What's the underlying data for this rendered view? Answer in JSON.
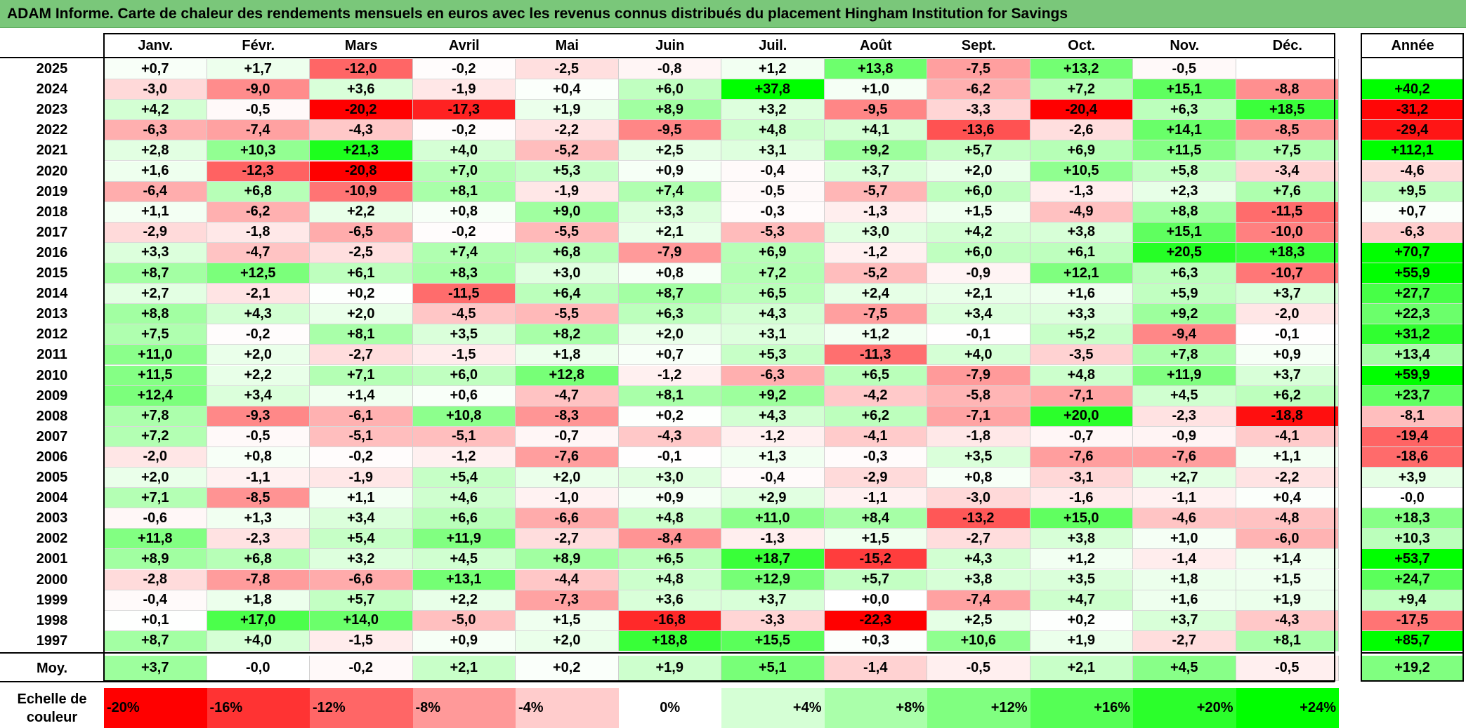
{
  "title": "ADAM Informe. Carte de chaleur des rendements mensuels en euros avec les revenus connus distribués du placement Hingham Institution for Savings",
  "chart_data": {
    "type": "heatmap",
    "title": "ADAM Informe. Carte de chaleur des rendements mensuels en euros avec les revenus connus distribués du placement Hingham Institution for Savings",
    "months": [
      "Janv.",
      "Févr.",
      "Mars",
      "Avril",
      "Mai",
      "Juin",
      "Juil.",
      "Août",
      "Sept.",
      "Oct.",
      "Nov.",
      "Déc."
    ],
    "annual_header": "Année",
    "rows": [
      {
        "year": "2025",
        "values": [
          "+0,7",
          "+1,7",
          "-12,0",
          "-0,2",
          "-2,5",
          "-0,8",
          "+1,2",
          "+13,8",
          "-7,5",
          "+13,2",
          "-0,5",
          ""
        ],
        "annual": ""
      },
      {
        "year": "2024",
        "values": [
          "-3,0",
          "-9,0",
          "+3,6",
          "-1,9",
          "+0,4",
          "+6,0",
          "+37,8",
          "+1,0",
          "-6,2",
          "+7,2",
          "+15,1",
          "-8,8"
        ],
        "annual": "+40,2"
      },
      {
        "year": "2023",
        "values": [
          "+4,2",
          "-0,5",
          "-20,2",
          "-17,3",
          "+1,9",
          "+8,9",
          "+3,2",
          "-9,5",
          "-3,3",
          "-20,4",
          "+6,3",
          "+18,5"
        ],
        "annual": "-31,2"
      },
      {
        "year": "2022",
        "values": [
          "-6,3",
          "-7,4",
          "-4,3",
          "-0,2",
          "-2,2",
          "-9,5",
          "+4,8",
          "+4,1",
          "-13,6",
          "-2,6",
          "+14,1",
          "-8,5"
        ],
        "annual": "-29,4"
      },
      {
        "year": "2021",
        "values": [
          "+2,8",
          "+10,3",
          "+21,3",
          "+4,0",
          "-5,2",
          "+2,5",
          "+3,1",
          "+9,2",
          "+5,7",
          "+6,9",
          "+11,5",
          "+7,5"
        ],
        "annual": "+112,1"
      },
      {
        "year": "2020",
        "values": [
          "+1,6",
          "-12,3",
          "-20,8",
          "+7,0",
          "+5,3",
          "+0,9",
          "-0,4",
          "+3,7",
          "+2,0",
          "+10,5",
          "+5,8",
          "-3,4"
        ],
        "annual": "-4,6"
      },
      {
        "year": "2019",
        "values": [
          "-6,4",
          "+6,8",
          "-10,9",
          "+8,1",
          "-1,9",
          "+7,4",
          "-0,5",
          "-5,7",
          "+6,0",
          "-1,3",
          "+2,3",
          "+7,6"
        ],
        "annual": "+9,5"
      },
      {
        "year": "2018",
        "values": [
          "+1,1",
          "-6,2",
          "+2,2",
          "+0,8",
          "+9,0",
          "+3,3",
          "-0,3",
          "-1,3",
          "+1,5",
          "-4,9",
          "+8,8",
          "-11,5"
        ],
        "annual": "+0,7"
      },
      {
        "year": "2017",
        "values": [
          "-2,9",
          "-1,8",
          "-6,5",
          "-0,2",
          "-5,5",
          "+2,1",
          "-5,3",
          "+3,0",
          "+4,2",
          "+3,8",
          "+15,1",
          "-10,0"
        ],
        "annual": "-6,3"
      },
      {
        "year": "2016",
        "values": [
          "+3,3",
          "-4,7",
          "-2,5",
          "+7,4",
          "+6,8",
          "-7,9",
          "+6,9",
          "-1,2",
          "+6,0",
          "+6,1",
          "+20,5",
          "+18,3"
        ],
        "annual": "+70,7"
      },
      {
        "year": "2015",
        "values": [
          "+8,7",
          "+12,5",
          "+6,1",
          "+8,3",
          "+3,0",
          "+0,8",
          "+7,2",
          "-5,2",
          "-0,9",
          "+12,1",
          "+6,3",
          "-10,7"
        ],
        "annual": "+55,9"
      },
      {
        "year": "2014",
        "values": [
          "+2,7",
          "-2,1",
          "+0,2",
          "-11,5",
          "+6,4",
          "+8,7",
          "+6,5",
          "+2,4",
          "+2,1",
          "+1,6",
          "+5,9",
          "+3,7"
        ],
        "annual": "+27,7"
      },
      {
        "year": "2013",
        "values": [
          "+8,8",
          "+4,3",
          "+2,0",
          "-4,5",
          "-5,5",
          "+6,3",
          "+4,3",
          "-7,5",
          "+3,4",
          "+3,3",
          "+9,2",
          "-2,0"
        ],
        "annual": "+22,3"
      },
      {
        "year": "2012",
        "values": [
          "+7,5",
          "-0,2",
          "+8,1",
          "+3,5",
          "+8,2",
          "+2,0",
          "+3,1",
          "+1,2",
          "-0,1",
          "+5,2",
          "-9,4",
          "-0,1"
        ],
        "annual": "+31,2"
      },
      {
        "year": "2011",
        "values": [
          "+11,0",
          "+2,0",
          "-2,7",
          "-1,5",
          "+1,8",
          "+0,7",
          "+5,3",
          "-11,3",
          "+4,0",
          "-3,5",
          "+7,8",
          "+0,9"
        ],
        "annual": "+13,4"
      },
      {
        "year": "2010",
        "values": [
          "+11,5",
          "+2,2",
          "+7,1",
          "+6,0",
          "+12,8",
          "-1,2",
          "-6,3",
          "+6,5",
          "-7,9",
          "+4,8",
          "+11,9",
          "+3,7"
        ],
        "annual": "+59,9"
      },
      {
        "year": "2009",
        "values": [
          "+12,4",
          "+3,4",
          "+1,4",
          "+0,6",
          "-4,7",
          "+8,1",
          "+9,2",
          "-4,2",
          "-5,8",
          "-7,1",
          "+4,5",
          "+6,2"
        ],
        "annual": "+23,7"
      },
      {
        "year": "2008",
        "values": [
          "+7,8",
          "-9,3",
          "-6,1",
          "+10,8",
          "-8,3",
          "+0,2",
          "+4,3",
          "+6,2",
          "-7,1",
          "+20,0",
          "-2,3",
          "-18,8"
        ],
        "annual": "-8,1"
      },
      {
        "year": "2007",
        "values": [
          "+7,2",
          "-0,5",
          "-5,1",
          "-5,1",
          "-0,7",
          "-4,3",
          "-1,2",
          "-4,1",
          "-1,8",
          "-0,7",
          "-0,9",
          "-4,1"
        ],
        "annual": "-19,4"
      },
      {
        "year": "2006",
        "values": [
          "-2,0",
          "+0,8",
          "-0,2",
          "-1,2",
          "-7,6",
          "-0,1",
          "+1,3",
          "-0,3",
          "+3,5",
          "-7,6",
          "-7,6",
          "+1,1"
        ],
        "annual": "-18,6"
      },
      {
        "year": "2005",
        "values": [
          "+2,0",
          "-1,1",
          "-1,9",
          "+5,4",
          "+2,0",
          "+3,0",
          "-0,4",
          "-2,9",
          "+0,8",
          "-3,1",
          "+2,7",
          "-2,2"
        ],
        "annual": "+3,9"
      },
      {
        "year": "2004",
        "values": [
          "+7,1",
          "-8,5",
          "+1,1",
          "+4,6",
          "-1,0",
          "+0,9",
          "+2,9",
          "-1,1",
          "-3,0",
          "-1,6",
          "-1,1",
          "+0,4"
        ],
        "annual": "-0,0"
      },
      {
        "year": "2003",
        "values": [
          "-0,6",
          "+1,3",
          "+3,4",
          "+6,6",
          "-6,6",
          "+4,8",
          "+11,0",
          "+8,4",
          "-13,2",
          "+15,0",
          "-4,6",
          "-4,8"
        ],
        "annual": "+18,3"
      },
      {
        "year": "2002",
        "values": [
          "+11,8",
          "-2,3",
          "+5,4",
          "+11,9",
          "-2,7",
          "-8,4",
          "-1,3",
          "+1,5",
          "-2,7",
          "+3,8",
          "+1,0",
          "-6,0"
        ],
        "annual": "+10,3"
      },
      {
        "year": "2001",
        "values": [
          "+8,9",
          "+6,8",
          "+3,2",
          "+4,5",
          "+8,9",
          "+6,5",
          "+18,7",
          "-15,2",
          "+4,3",
          "+1,2",
          "-1,4",
          "+1,4"
        ],
        "annual": "+53,7"
      },
      {
        "year": "2000",
        "values": [
          "-2,8",
          "-7,8",
          "-6,6",
          "+13,1",
          "-4,4",
          "+4,8",
          "+12,9",
          "+5,7",
          "+3,8",
          "+3,5",
          "+1,8",
          "+1,5"
        ],
        "annual": "+24,7"
      },
      {
        "year": "1999",
        "values": [
          "-0,4",
          "+1,8",
          "+5,7",
          "+2,2",
          "-7,3",
          "+3,6",
          "+3,7",
          "+0,0",
          "-7,4",
          "+4,7",
          "+1,6",
          "+1,9"
        ],
        "annual": "+9,4"
      },
      {
        "year": "1998",
        "values": [
          "+0,1",
          "+17,0",
          "+14,0",
          "-5,0",
          "+1,5",
          "-16,8",
          "-3,3",
          "-22,3",
          "+2,5",
          "+0,2",
          "+3,7",
          "-4,3"
        ],
        "annual": "-17,5"
      },
      {
        "year": "1997",
        "values": [
          "+8,7",
          "+4,0",
          "-1,5",
          "+0,9",
          "+2,0",
          "+18,8",
          "+15,5",
          "+0,3",
          "+10,6",
          "+1,9",
          "-2,7",
          "+8,1"
        ],
        "annual": "+85,7"
      }
    ],
    "average": {
      "label": "Moy.",
      "values": [
        "+3,7",
        "-0,0",
        "-0,2",
        "+2,1",
        "+0,2",
        "+1,9",
        "+5,1",
        "-1,4",
        "-0,5",
        "+2,1",
        "+4,5",
        "-0,5"
      ],
      "annual": "+19,2"
    },
    "color_scale": {
      "label": "Echelle de couleur",
      "stops": [
        {
          "label": "-20%",
          "value": -20,
          "color": "#ff0000"
        },
        {
          "label": "-16%",
          "value": -16,
          "color": "#ff3333"
        },
        {
          "label": "-12%",
          "value": -12,
          "color": "#ff6666"
        },
        {
          "label": "-8%",
          "value": -8,
          "color": "#ff9999"
        },
        {
          "label": "-4%",
          "value": -4,
          "color": "#ffcccc"
        },
        {
          "label": "0%",
          "value": 0,
          "color": "#ffffff"
        },
        {
          "label": "+4%",
          "value": 4,
          "color": "#d5ffd5"
        },
        {
          "label": "+8%",
          "value": 8,
          "color": "#aaffaa"
        },
        {
          "label": "+12%",
          "value": 12,
          "color": "#80ff80"
        },
        {
          "label": "+16%",
          "value": 16,
          "color": "#55ff55"
        },
        {
          "label": "+20%",
          "value": 20,
          "color": "#2bff2b"
        },
        {
          "label": "+24%",
          "value": 24,
          "color": "#00ff00"
        }
      ]
    }
  }
}
